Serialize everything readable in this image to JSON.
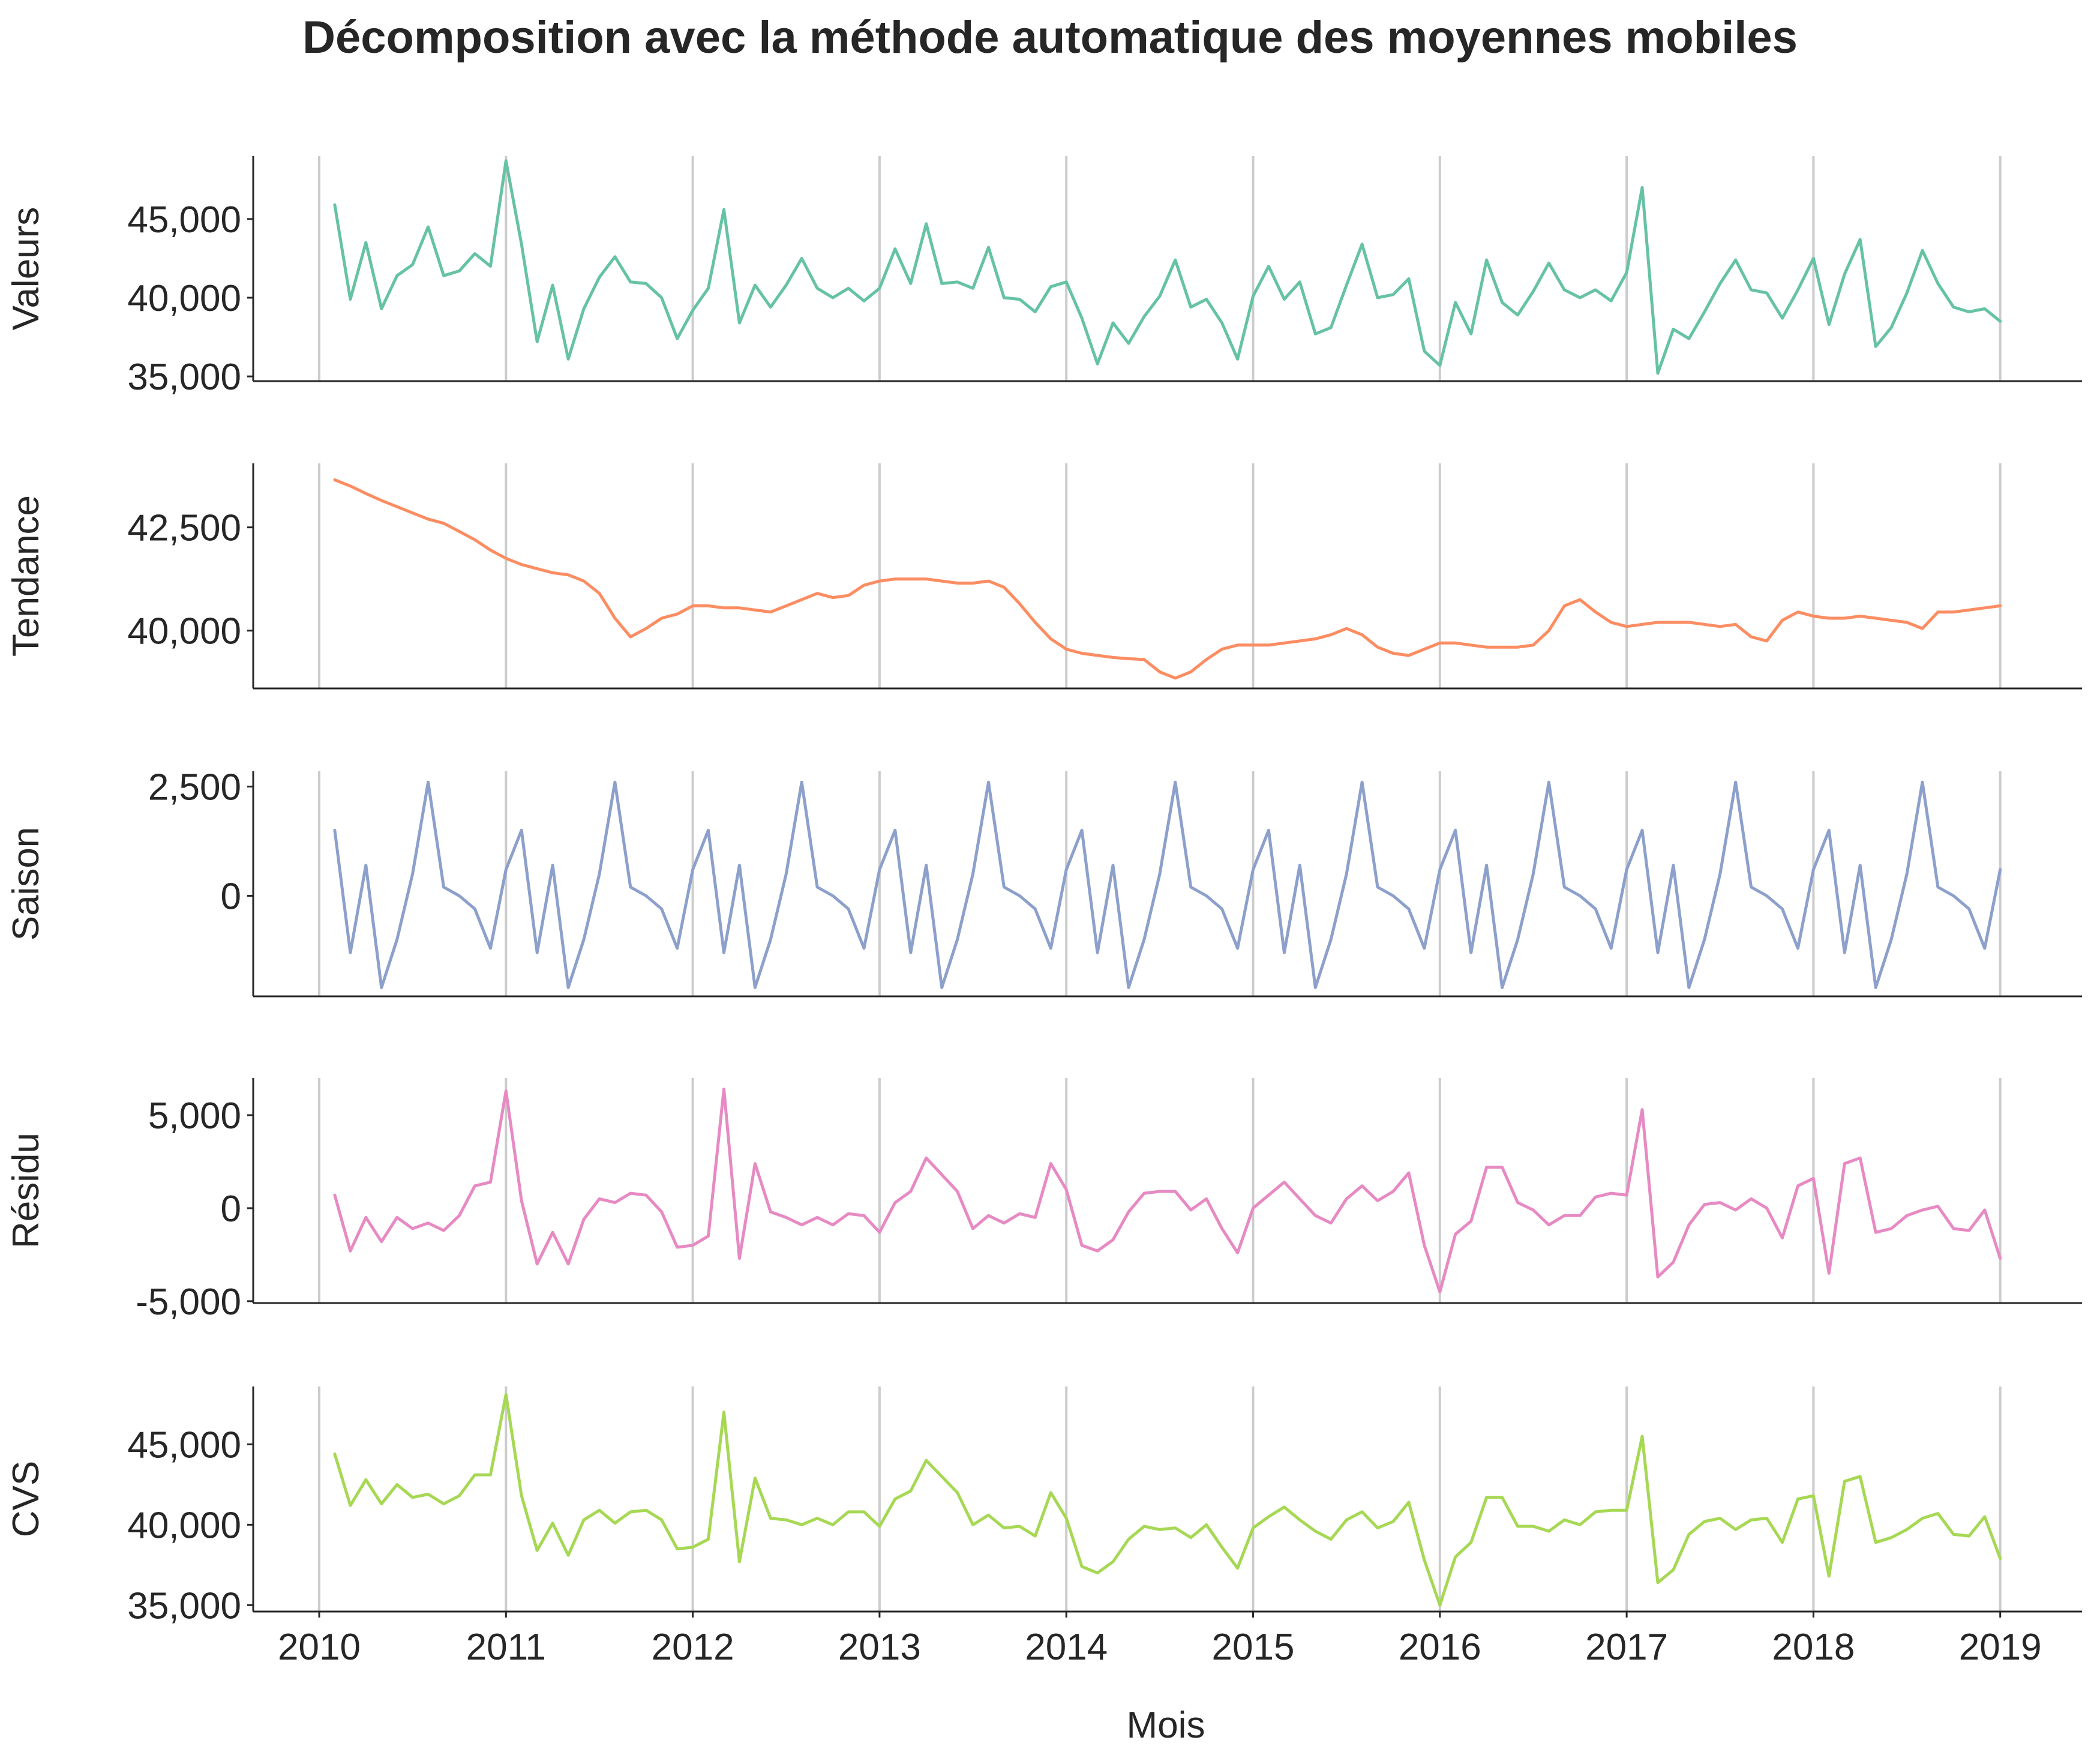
{
  "chart_data": {
    "type": "line",
    "title": "Décomposition avec la méthode automatique des moyennes mobiles",
    "xlabel": "Mois",
    "x_start": "2010-02",
    "x_end": "2019-01",
    "x_ticks": [
      "2010",
      "2011",
      "2012",
      "2013",
      "2014",
      "2015",
      "2016",
      "2017",
      "2018",
      "2019"
    ],
    "grid_x": true,
    "panels": [
      {
        "ylabel": "Valeurs",
        "color": "#66c2a5",
        "ylim": [
          34700,
          49000
        ],
        "yticks": [
          35000,
          40000,
          45000
        ],
        "ytick_labels": [
          "35,000",
          "40,000",
          "45,000"
        ],
        "values": [
          45900,
          39900,
          43500,
          39300,
          41400,
          42100,
          44500,
          41400,
          41700,
          42800,
          42000,
          48700,
          43400,
          37200,
          40800,
          36100,
          39300,
          41300,
          42600,
          41000,
          40900,
          40000,
          37400,
          39200,
          40600,
          45600,
          38400,
          40800,
          39400,
          40800,
          42500,
          40600,
          40000,
          40600,
          39800,
          40600,
          43100,
          40900,
          44700,
          40900,
          41000,
          40600,
          43200,
          40000,
          39900,
          39100,
          40700,
          41000,
          38700,
          35800,
          38400,
          37100,
          38800,
          40100,
          42400,
          39400,
          39900,
          38400,
          36100,
          40100,
          42000,
          39900,
          41000,
          37700,
          38100,
          40800,
          43400,
          40000,
          40200,
          41200,
          36600,
          35700,
          39700,
          37700,
          42400,
          39700,
          38900,
          40400,
          42200,
          40500,
          40000,
          40500,
          39800,
          41600,
          47000,
          35200,
          38000,
          37400,
          39100,
          40900,
          42400,
          40500,
          40300,
          38700,
          40500,
          42500,
          38300,
          41500,
          43700,
          36900,
          38100,
          40300,
          43000,
          40900,
          39400,
          39100,
          39300,
          38500
        ]
      },
      {
        "ylabel": "Tendance",
        "color": "#fc8d62",
        "ylim": [
          38600,
          44050
        ],
        "yticks": [
          40000,
          42500
        ],
        "ytick_labels": [
          "40,000",
          "42,500"
        ],
        "values": [
          43650,
          43500,
          43320,
          43150,
          43000,
          42850,
          42700,
          42600,
          42400,
          42200,
          41950,
          41750,
          41600,
          41500,
          41400,
          41350,
          41200,
          40900,
          40300,
          39850,
          40050,
          40300,
          40400,
          40600,
          40600,
          40550,
          40550,
          40500,
          40450,
          40600,
          40750,
          40900,
          40800,
          40850,
          41100,
          41200,
          41250,
          41250,
          41250,
          41200,
          41150,
          41150,
          41200,
          41050,
          40650,
          40200,
          39800,
          39550,
          39450,
          39400,
          39350,
          39320,
          39300,
          39000,
          38850,
          39000,
          39300,
          39550,
          39650,
          39650,
          39650,
          39700,
          39750,
          39800,
          39900,
          40050,
          39900,
          39600,
          39450,
          39400,
          39550,
          39700,
          39700,
          39650,
          39600,
          39600,
          39600,
          39650,
          40000,
          40600,
          40750,
          40450,
          40200,
          40100,
          40150,
          40200,
          40200,
          40200,
          40150,
          40100,
          40150,
          39850,
          39750,
          40250,
          40450,
          40350,
          40300,
          40300,
          40350,
          40300,
          40250,
          40200,
          40050,
          40450,
          40450,
          40500,
          40550,
          40600
        ]
      },
      {
        "ylabel": "Saison",
        "color": "#8da0cb",
        "ylim": [
          -2300,
          2850
        ],
        "yticks": [
          0,
          2500
        ],
        "ytick_labels": [
          "0",
          "2,500"
        ],
        "values": [
          1500,
          -1300,
          700,
          -2100,
          -1000,
          500,
          2600,
          200,
          0,
          -300,
          -1200,
          600,
          1500,
          -1300,
          700,
          -2100,
          -1000,
          500,
          2600,
          200,
          0,
          -300,
          -1200,
          600,
          1500,
          -1300,
          700,
          -2100,
          -1000,
          500,
          2600,
          200,
          0,
          -300,
          -1200,
          600,
          1500,
          -1300,
          700,
          -2100,
          -1000,
          500,
          2600,
          200,
          0,
          -300,
          -1200,
          600,
          1500,
          -1300,
          700,
          -2100,
          -1000,
          500,
          2600,
          200,
          0,
          -300,
          -1200,
          600,
          1500,
          -1300,
          700,
          -2100,
          -1000,
          500,
          2600,
          200,
          0,
          -300,
          -1200,
          600,
          1500,
          -1300,
          700,
          -2100,
          -1000,
          500,
          2600,
          200,
          0,
          -300,
          -1200,
          600,
          1500,
          -1300,
          700,
          -2100,
          -1000,
          500,
          2600,
          200,
          0,
          -300,
          -1200,
          600,
          1500,
          -1300,
          700,
          -2100,
          -1000,
          500,
          2600,
          200,
          0,
          -300,
          -1200,
          600
        ]
      },
      {
        "ylabel": "Résidu",
        "color": "#e78ac3",
        "ylim": [
          -5100,
          7000
        ],
        "yticks": [
          -5000,
          0,
          5000
        ],
        "ytick_labels": [
          "-5,000",
          "0",
          "5,000"
        ],
        "values": [
          700,
          -2300,
          -500,
          -1800,
          -500,
          -1100,
          -800,
          -1200,
          -400,
          1200,
          1400,
          6300,
          400,
          -3000,
          -1300,
          -3000,
          -600,
          500,
          300,
          800,
          700,
          -200,
          -2100,
          -2000,
          -1500,
          6400,
          -2700,
          2400,
          -200,
          -500,
          -900,
          -500,
          -900,
          -300,
          -400,
          -1300,
          300,
          900,
          2700,
          1800,
          900,
          -1100,
          -400,
          -800,
          -300,
          -500,
          2400,
          1000,
          -2000,
          -2300,
          -1700,
          -200,
          800,
          900,
          900,
          -100,
          500,
          -1100,
          -2400,
          0,
          700,
          1400,
          500,
          -400,
          -800,
          500,
          1200,
          400,
          900,
          1900,
          -2000,
          -4500,
          -1400,
          -700,
          2200,
          2200,
          300,
          -100,
          -900,
          -400,
          -400,
          600,
          800,
          700,
          5300,
          -3700,
          -2900,
          -900,
          200,
          300,
          -100,
          500,
          0,
          -1600,
          1200,
          1600,
          -3500,
          2400,
          2700,
          -1300,
          -1100,
          -400,
          -100,
          100,
          -1100,
          -1200,
          -100,
          -2700
        ]
      },
      {
        "ylabel": "CVS",
        "color": "#a6d854",
        "ylim": [
          34600,
          48600
        ],
        "yticks": [
          35000,
          40000,
          45000
        ],
        "ytick_labels": [
          "35,000",
          "40,000",
          "45,000"
        ],
        "values": [
          44400,
          41200,
          42800,
          41300,
          42500,
          41700,
          41900,
          41300,
          41800,
          43100,
          43100,
          48100,
          41800,
          38400,
          40100,
          38100,
          40300,
          40900,
          40100,
          40800,
          40900,
          40300,
          38500,
          38600,
          39100,
          47000,
          37700,
          42900,
          40400,
          40300,
          40000,
          40400,
          40000,
          40800,
          40800,
          39900,
          41600,
          42100,
          44000,
          43000,
          42000,
          40000,
          40600,
          39800,
          39900,
          39300,
          42000,
          40400,
          37400,
          37000,
          37700,
          39100,
          39900,
          39700,
          39800,
          39200,
          40000,
          38600,
          37300,
          39800,
          40500,
          41100,
          40300,
          39600,
          39100,
          40300,
          40800,
          39800,
          40200,
          41400,
          37800,
          35000,
          38000,
          38900,
          41700,
          41700,
          39900,
          39900,
          39600,
          40300,
          40000,
          40800,
          40900,
          40900,
          45500,
          36400,
          37200,
          39400,
          40200,
          40400,
          39700,
          40300,
          40400,
          38900,
          41600,
          41800,
          36800,
          42700,
          43000,
          38900,
          39200,
          39700,
          40400,
          40700,
          39400,
          39300,
          40500,
          37900
        ]
      }
    ]
  }
}
